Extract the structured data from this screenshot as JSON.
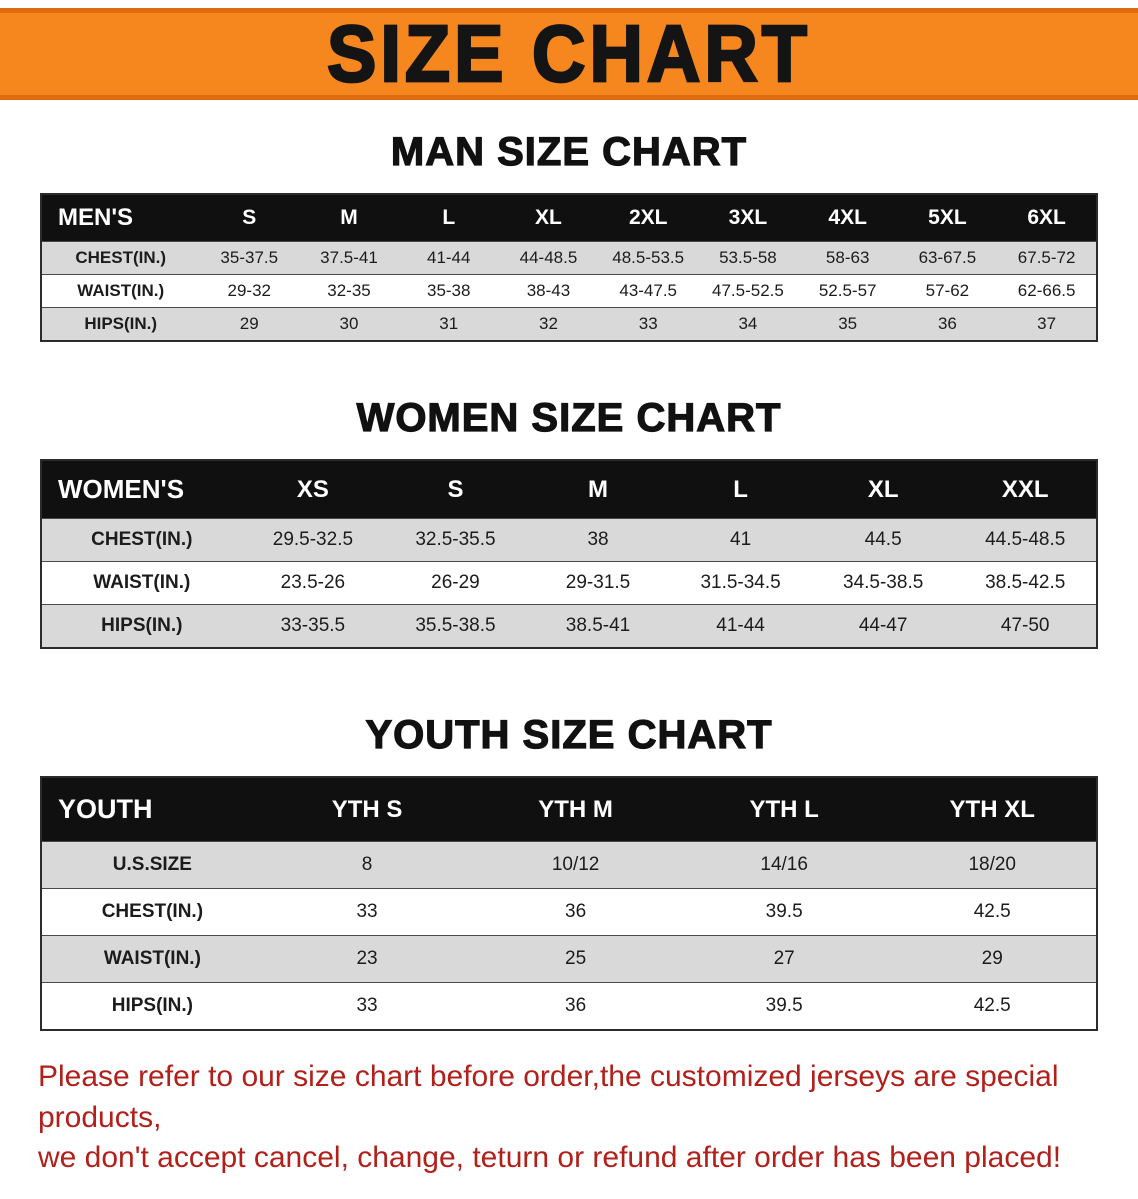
{
  "banner": {
    "title": "SIZE CHART",
    "bg_color": "#f6871f",
    "border_color": "#e06a10"
  },
  "colors": {
    "table_header_bg": "#101010",
    "table_row_alt_bg": "#d9d9d9",
    "disclaimer_red": "#b1201b"
  },
  "sections": [
    {
      "heading": "MAN SIZE CHART",
      "table": {
        "header": [
          "MEN'S",
          "S",
          "M",
          "L",
          "XL",
          "2XL",
          "3XL",
          "4XL",
          "5XL",
          "6XL"
        ],
        "rows": [
          [
            "CHEST(IN.)",
            "35-37.5",
            "37.5-41",
            "41-44",
            "44-48.5",
            "48.5-53.5",
            "53.5-58",
            "58-63",
            "63-67.5",
            "67.5-72"
          ],
          [
            "WAIST(IN.)",
            "29-32",
            "32-35",
            "35-38",
            "38-43",
            "43-47.5",
            "47.5-52.5",
            "52.5-57",
            "57-62",
            "62-66.5"
          ],
          [
            "HIPS(IN.)",
            "29",
            "30",
            "31",
            "32",
            "33",
            "34",
            "35",
            "36",
            "37"
          ]
        ]
      }
    },
    {
      "heading": "WOMEN SIZE CHART",
      "table": {
        "header": [
          "WOMEN'S",
          "XS",
          "S",
          "M",
          "L",
          "XL",
          "XXL"
        ],
        "rows": [
          [
            "CHEST(IN.)",
            "29.5-32.5",
            "32.5-35.5",
            "38",
            "41",
            "44.5",
            "44.5-48.5"
          ],
          [
            "WAIST(IN.)",
            "23.5-26",
            "26-29",
            "29-31.5",
            "31.5-34.5",
            "34.5-38.5",
            "38.5-42.5"
          ],
          [
            "HIPS(IN.)",
            "33-35.5",
            "35.5-38.5",
            "38.5-41",
            "41-44",
            "44-47",
            "47-50"
          ]
        ]
      }
    },
    {
      "heading": "YOUTH SIZE CHART",
      "table": {
        "header": [
          "YOUTH",
          "YTH S",
          "YTH M",
          "YTH L",
          "YTH XL"
        ],
        "rows": [
          [
            "U.S.SIZE",
            "8",
            "10/12",
            "14/16",
            "18/20"
          ],
          [
            "CHEST(IN.)",
            "33",
            "36",
            "39.5",
            "42.5"
          ],
          [
            "WAIST(IN.)",
            "23",
            "25",
            "27",
            "29"
          ],
          [
            "HIPS(IN.)",
            "33",
            "36",
            "39.5",
            "42.5"
          ]
        ]
      }
    }
  ],
  "disclaimer": {
    "lines": [
      "Please refer to our size chart before order,the customized jerseys are special products,",
      "we don't accept cancel, change, teturn or refund after order has been placed!"
    ]
  }
}
